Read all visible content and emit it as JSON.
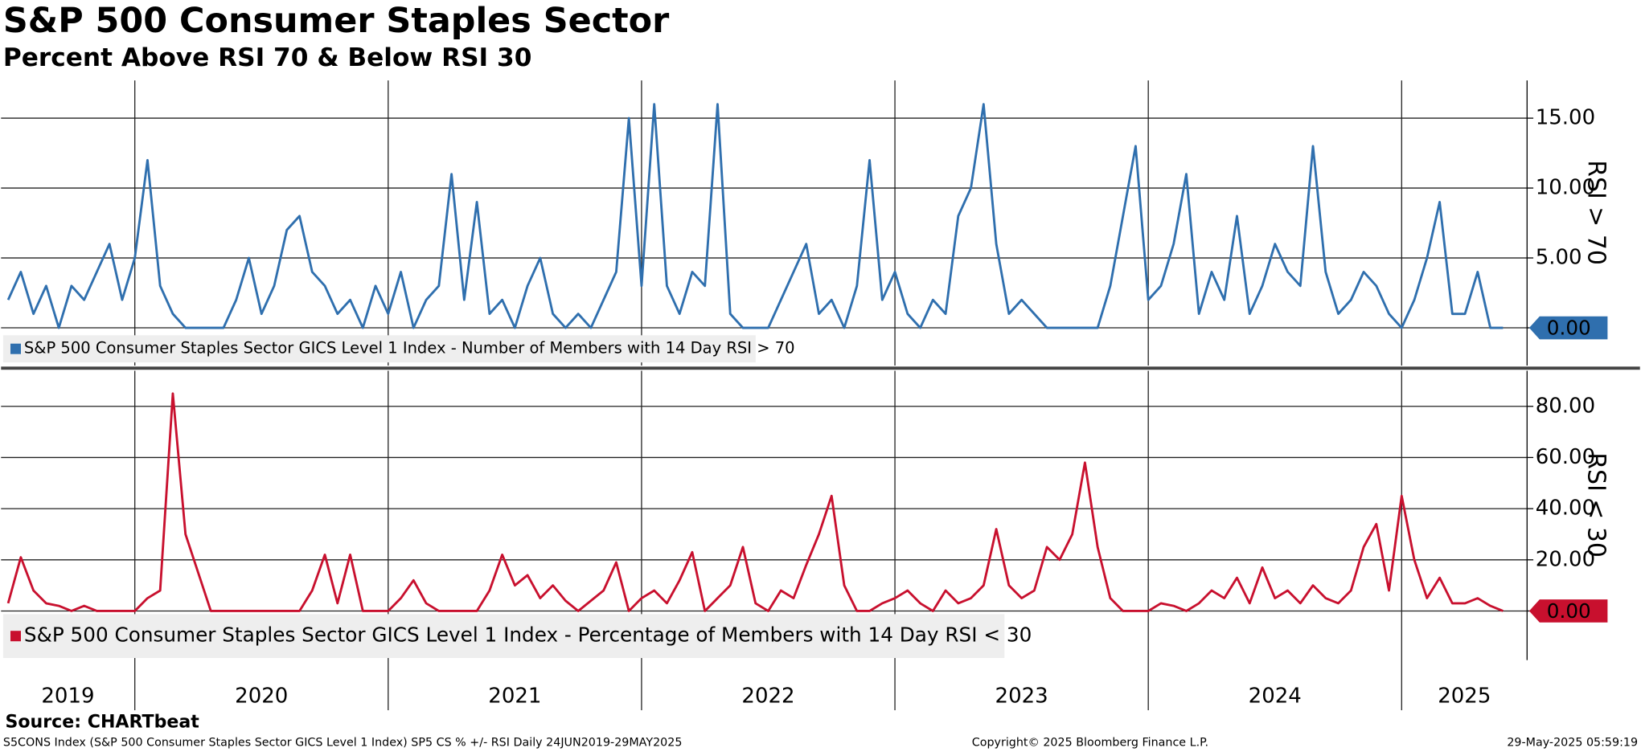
{
  "title": "S&P 500 Consumer Staples Sector",
  "subtitle": "Percent Above RSI 70 & Below RSI 30",
  "source": "Source: CHARTbeat",
  "footer": {
    "left": "S5CONS Index (S&P 500 Consumer Staples Sector GICS Level 1 Index) SP5 CS % +/- RSI  Daily 24JUN2019-29MAY2025",
    "center": "Copyright© 2025 Bloomberg Finance L.P.",
    "right": "29-May-2025 05:59:19"
  },
  "chart_data": [
    {
      "type": "line",
      "ylabel": "RSI > 70",
      "xlim": [
        2019.472,
        2025.495
      ],
      "xticks": [
        2019,
        2020,
        2021,
        2022,
        2023,
        2024,
        2025
      ],
      "ylim": [
        -2.7,
        17.7
      ],
      "yticks": [
        {
          "value": 0,
          "label": "0.00"
        },
        {
          "value": 5,
          "label": "5.00"
        },
        {
          "value": 10,
          "label": "10.00"
        },
        {
          "value": 15,
          "label": "15.00"
        }
      ],
      "grid": true,
      "x": [
        2019.5,
        2019.55,
        2019.6,
        2019.65,
        2019.7,
        2019.75,
        2019.8,
        2019.85,
        2019.9,
        2019.95,
        2020,
        2020.05,
        2020.1,
        2020.15,
        2020.2,
        2020.25,
        2020.3,
        2020.35,
        2020.4,
        2020.45,
        2020.5,
        2020.55,
        2020.6,
        2020.65,
        2020.7,
        2020.75,
        2020.8,
        2020.85,
        2020.9,
        2020.95,
        2021,
        2021.05,
        2021.1,
        2021.15,
        2021.2,
        2021.25,
        2021.3,
        2021.35,
        2021.4,
        2021.45,
        2021.5,
        2021.55,
        2021.6,
        2021.65,
        2021.7,
        2021.75,
        2021.8,
        2021.85,
        2021.9,
        2021.95,
        2022,
        2022.05,
        2022.1,
        2022.15,
        2022.2,
        2022.25,
        2022.3,
        2022.35,
        2022.4,
        2022.45,
        2022.5,
        2022.55,
        2022.6,
        2022.65,
        2022.7,
        2022.75,
        2022.8,
        2022.85,
        2022.9,
        2022.95,
        2023,
        2023.05,
        2023.1,
        2023.15,
        2023.2,
        2023.25,
        2023.3,
        2023.35,
        2023.4,
        2023.45,
        2023.5,
        2023.55,
        2023.6,
        2023.65,
        2023.7,
        2023.75,
        2023.8,
        2023.85,
        2023.9,
        2023.95,
        2024,
        2024.05,
        2024.1,
        2024.15,
        2024.2,
        2024.25,
        2024.3,
        2024.35,
        2024.4,
        2024.45,
        2024.5,
        2024.55,
        2024.6,
        2024.65,
        2024.7,
        2024.75,
        2024.8,
        2024.85,
        2024.9,
        2024.95,
        2025,
        2025.05,
        2025.1,
        2025.15,
        2025.2,
        2025.25,
        2025.3,
        2025.35,
        2025.4
      ],
      "series": [
        {
          "name": "S&P 500 Consumer Staples Sector GICS Level 1 Index - Number of Members with 14 Day RSI > 70",
          "color": "#2f6fae",
          "last_value_label": "0.00",
          "values": [
            2,
            4,
            1,
            3,
            0,
            3,
            2,
            4,
            6,
            2,
            5,
            12,
            3,
            1,
            0,
            0,
            0,
            0,
            2,
            5,
            1,
            3,
            7,
            8,
            4,
            3,
            1,
            2,
            0,
            3,
            1,
            4,
            0,
            2,
            3,
            11,
            2,
            9,
            1,
            2,
            0,
            3,
            5,
            1,
            0,
            1,
            0,
            2,
            4,
            15,
            3,
            16,
            3,
            1,
            4,
            3,
            16,
            1,
            0,
            0,
            0,
            2,
            4,
            6,
            1,
            2,
            0,
            3,
            12,
            2,
            4,
            1,
            0,
            2,
            1,
            8,
            10,
            16,
            6,
            1,
            2,
            1,
            0,
            0,
            0,
            0,
            0,
            3,
            8,
            13,
            2,
            3,
            6,
            11,
            1,
            4,
            2,
            8,
            1,
            3,
            6,
            4,
            3,
            13,
            4,
            1,
            2,
            4,
            3,
            1,
            0,
            2,
            5,
            9,
            1,
            1,
            4,
            0,
            0
          ]
        }
      ]
    },
    {
      "type": "line",
      "ylabel": "RSI < 30",
      "xlim": [
        2019.472,
        2025.495
      ],
      "xticks": [
        2019,
        2020,
        2021,
        2022,
        2023,
        2024,
        2025
      ],
      "ylim": [
        -19.2,
        93.9
      ],
      "yticks": [
        {
          "value": 0,
          "label": "0.00"
        },
        {
          "value": 20,
          "label": "20.00"
        },
        {
          "value": 40,
          "label": "40.00"
        },
        {
          "value": 60,
          "label": "60.00"
        },
        {
          "value": 80,
          "label": "80.00"
        }
      ],
      "grid": true,
      "x": [
        2019.5,
        2019.55,
        2019.6,
        2019.65,
        2019.7,
        2019.75,
        2019.8,
        2019.85,
        2019.9,
        2019.95,
        2020,
        2020.05,
        2020.1,
        2020.15,
        2020.2,
        2020.25,
        2020.3,
        2020.35,
        2020.4,
        2020.45,
        2020.5,
        2020.55,
        2020.6,
        2020.65,
        2020.7,
        2020.75,
        2020.8,
        2020.85,
        2020.9,
        2020.95,
        2021,
        2021.05,
        2021.1,
        2021.15,
        2021.2,
        2021.25,
        2021.3,
        2021.35,
        2021.4,
        2021.45,
        2021.5,
        2021.55,
        2021.6,
        2021.65,
        2021.7,
        2021.75,
        2021.8,
        2021.85,
        2021.9,
        2021.95,
        2022,
        2022.05,
        2022.1,
        2022.15,
        2022.2,
        2022.25,
        2022.3,
        2022.35,
        2022.4,
        2022.45,
        2022.5,
        2022.55,
        2022.6,
        2022.65,
        2022.7,
        2022.75,
        2022.8,
        2022.85,
        2022.9,
        2022.95,
        2023,
        2023.05,
        2023.1,
        2023.15,
        2023.2,
        2023.25,
        2023.3,
        2023.35,
        2023.4,
        2023.45,
        2023.5,
        2023.55,
        2023.6,
        2023.65,
        2023.7,
        2023.75,
        2023.8,
        2023.85,
        2023.9,
        2023.95,
        2024,
        2024.05,
        2024.1,
        2024.15,
        2024.2,
        2024.25,
        2024.3,
        2024.35,
        2024.4,
        2024.45,
        2024.5,
        2024.55,
        2024.6,
        2024.65,
        2024.7,
        2024.75,
        2024.8,
        2024.85,
        2024.9,
        2024.95,
        2025,
        2025.05,
        2025.1,
        2025.15,
        2025.2,
        2025.25,
        2025.3,
        2025.35,
        2025.4
      ],
      "series": [
        {
          "name": "S&P 500 Consumer Staples Sector GICS Level 1 Index - Percentage of Members with 14 Day RSI < 30",
          "color": "#c8102e",
          "last_value_label": "0.00",
          "values": [
            3,
            21,
            8,
            3,
            2,
            0,
            2,
            0,
            0,
            0,
            0,
            5,
            8,
            85,
            30,
            15,
            0,
            0,
            0,
            0,
            0,
            0,
            0,
            0,
            8,
            22,
            3,
            22,
            0,
            0,
            0,
            5,
            12,
            3,
            0,
            0,
            0,
            0,
            8,
            22,
            10,
            14,
            5,
            10,
            4,
            0,
            4,
            8,
            19,
            0,
            5,
            8,
            3,
            12,
            23,
            0,
            5,
            10,
            25,
            3,
            0,
            8,
            5,
            18,
            30,
            45,
            10,
            0,
            0,
            3,
            5,
            8,
            3,
            0,
            8,
            3,
            5,
            10,
            32,
            10,
            5,
            8,
            25,
            20,
            30,
            58,
            25,
            5,
            0,
            0,
            0,
            3,
            2,
            0,
            3,
            8,
            5,
            13,
            3,
            17,
            5,
            8,
            3,
            10,
            5,
            3,
            8,
            25,
            34,
            8,
            45,
            20,
            5,
            13,
            3,
            3,
            5,
            2,
            0
          ]
        }
      ]
    }
  ]
}
